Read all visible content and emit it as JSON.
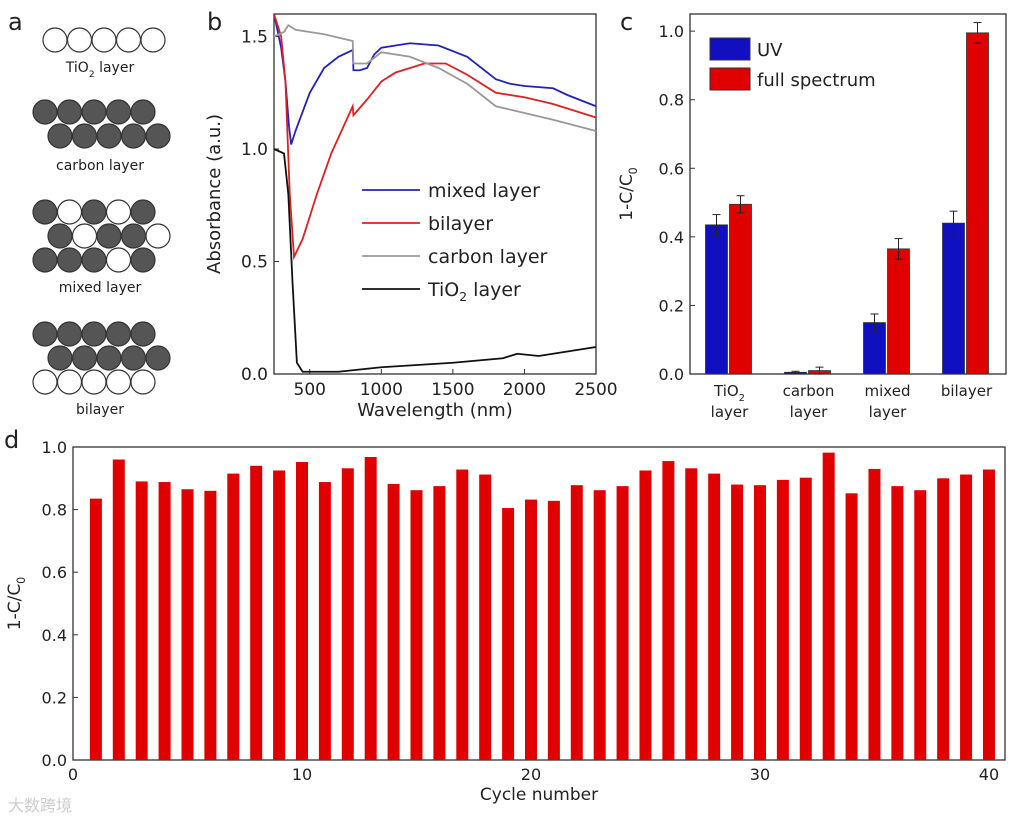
{
  "panel_labels": [
    "a",
    "b",
    "c",
    "d"
  ],
  "panel_a": {
    "labels": [
      "TiO2 layer",
      "carbon layer",
      "mixed layer",
      "bilayer"
    ]
  },
  "watermark": "大数跨境",
  "chart_data": [
    {
      "panel": "b",
      "type": "line",
      "xlabel": "Wavelength (nm)",
      "ylabel": "Absorbance (a.u.)",
      "xlim": [
        250,
        2500
      ],
      "ylim": [
        0,
        1.6
      ],
      "xticks": [
        500,
        1000,
        1500,
        2000,
        2500
      ],
      "yticks": [
        0.0,
        0.5,
        1.0,
        1.5
      ],
      "legend": "center-right",
      "series": [
        {
          "name": "mixed layer",
          "color": "#2222bb",
          "points": [
            [
              250,
              1.6
            ],
            [
              300,
              1.45
            ],
            [
              330,
              1.3
            ],
            [
              355,
              1.1
            ],
            [
              370,
              1.02
            ],
            [
              400,
              1.08
            ],
            [
              500,
              1.25
            ],
            [
              600,
              1.36
            ],
            [
              700,
              1.41
            ],
            [
              800,
              1.44
            ],
            [
              805,
              1.35
            ],
            [
              850,
              1.35
            ],
            [
              900,
              1.36
            ],
            [
              950,
              1.42
            ],
            [
              1000,
              1.45
            ],
            [
              1200,
              1.47
            ],
            [
              1400,
              1.46
            ],
            [
              1600,
              1.41
            ],
            [
              1800,
              1.31
            ],
            [
              1900,
              1.29
            ],
            [
              2000,
              1.28
            ],
            [
              2200,
              1.27
            ],
            [
              2300,
              1.24
            ],
            [
              2500,
              1.19
            ]
          ]
        },
        {
          "name": "bilayer",
          "color": "#e02020",
          "points": [
            [
              250,
              1.6
            ],
            [
              300,
              1.5
            ],
            [
              330,
              1.3
            ],
            [
              360,
              0.8
            ],
            [
              390,
              0.52
            ],
            [
              450,
              0.6
            ],
            [
              550,
              0.8
            ],
            [
              650,
              0.98
            ],
            [
              750,
              1.12
            ],
            [
              800,
              1.19
            ],
            [
              805,
              1.15
            ],
            [
              900,
              1.22
            ],
            [
              1000,
              1.3
            ],
            [
              1100,
              1.34
            ],
            [
              1300,
              1.38
            ],
            [
              1450,
              1.38
            ],
            [
              1600,
              1.33
            ],
            [
              1800,
              1.25
            ],
            [
              2000,
              1.23
            ],
            [
              2200,
              1.2
            ],
            [
              2500,
              1.14
            ]
          ]
        },
        {
          "name": "carbon layer",
          "color": "#999999",
          "points": [
            [
              250,
              1.5
            ],
            [
              320,
              1.52
            ],
            [
              350,
              1.55
            ],
            [
              400,
              1.53
            ],
            [
              600,
              1.51
            ],
            [
              800,
              1.48
            ],
            [
              805,
              1.38
            ],
            [
              900,
              1.38
            ],
            [
              1000,
              1.43
            ],
            [
              1200,
              1.41
            ],
            [
              1400,
              1.36
            ],
            [
              1600,
              1.29
            ],
            [
              1800,
              1.19
            ],
            [
              2000,
              1.16
            ],
            [
              2200,
              1.13
            ],
            [
              2500,
              1.08
            ]
          ]
        },
        {
          "name": "TiO2 layer",
          "color": "#111111",
          "points": [
            [
              250,
              1.0
            ],
            [
              320,
              0.98
            ],
            [
              350,
              0.8
            ],
            [
              380,
              0.4
            ],
            [
              410,
              0.05
            ],
            [
              450,
              0.01
            ],
            [
              700,
              0.01
            ],
            [
              1000,
              0.03
            ],
            [
              1500,
              0.05
            ],
            [
              1850,
              0.07
            ],
            [
              1950,
              0.09
            ],
            [
              2100,
              0.08
            ],
            [
              2500,
              0.12
            ]
          ]
        }
      ]
    },
    {
      "panel": "c",
      "type": "bar",
      "ylabel": "1-C/C0",
      "ylim": [
        0,
        1.05
      ],
      "yticks": [
        0.0,
        0.2,
        0.4,
        0.6,
        0.8,
        1.0
      ],
      "legend": "top-left",
      "categories": [
        [
          "TiO2",
          "layer"
        ],
        [
          "carbon",
          "layer"
        ],
        [
          "mixed",
          "layer"
        ],
        [
          "bilayer"
        ]
      ],
      "series": [
        {
          "name": "UV",
          "color": "#1010c0",
          "values": [
            0.435,
            0.005,
            0.15,
            0.44
          ],
          "errors": [
            0.03,
            0.003,
            0.025,
            0.035
          ]
        },
        {
          "name": "full spectrum",
          "color": "#e00000",
          "values": [
            0.495,
            0.01,
            0.365,
            0.995
          ],
          "errors": [
            0.025,
            0.01,
            0.03,
            0.03
          ]
        }
      ]
    },
    {
      "panel": "d",
      "type": "bar",
      "xlabel": "Cycle number",
      "ylabel": "1-C/C0",
      "xlim": [
        0,
        40.7
      ],
      "ylim": [
        0,
        1.0
      ],
      "xticks": [
        0,
        10,
        20,
        30,
        40
      ],
      "yticks": [
        0.0,
        0.2,
        0.4,
        0.6,
        0.8,
        1.0
      ],
      "color": "#e00000",
      "x": [
        1,
        2,
        3,
        4,
        5,
        6,
        7,
        8,
        9,
        10,
        11,
        12,
        13,
        14,
        15,
        16,
        17,
        18,
        19,
        20,
        21,
        22,
        23,
        24,
        25,
        26,
        27,
        28,
        29,
        30,
        31,
        32,
        33,
        34,
        35,
        36,
        37,
        38,
        39,
        40
      ],
      "values": [
        0.835,
        0.96,
        0.89,
        0.888,
        0.865,
        0.86,
        0.915,
        0.94,
        0.925,
        0.952,
        0.888,
        0.932,
        0.968,
        0.882,
        0.862,
        0.875,
        0.928,
        0.912,
        0.805,
        0.832,
        0.828,
        0.878,
        0.862,
        0.875,
        0.925,
        0.955,
        0.932,
        0.915,
        0.88,
        0.878,
        0.895,
        0.902,
        0.982,
        0.852,
        0.93,
        0.875,
        0.862,
        0.9,
        0.912,
        0.928
      ]
    }
  ]
}
